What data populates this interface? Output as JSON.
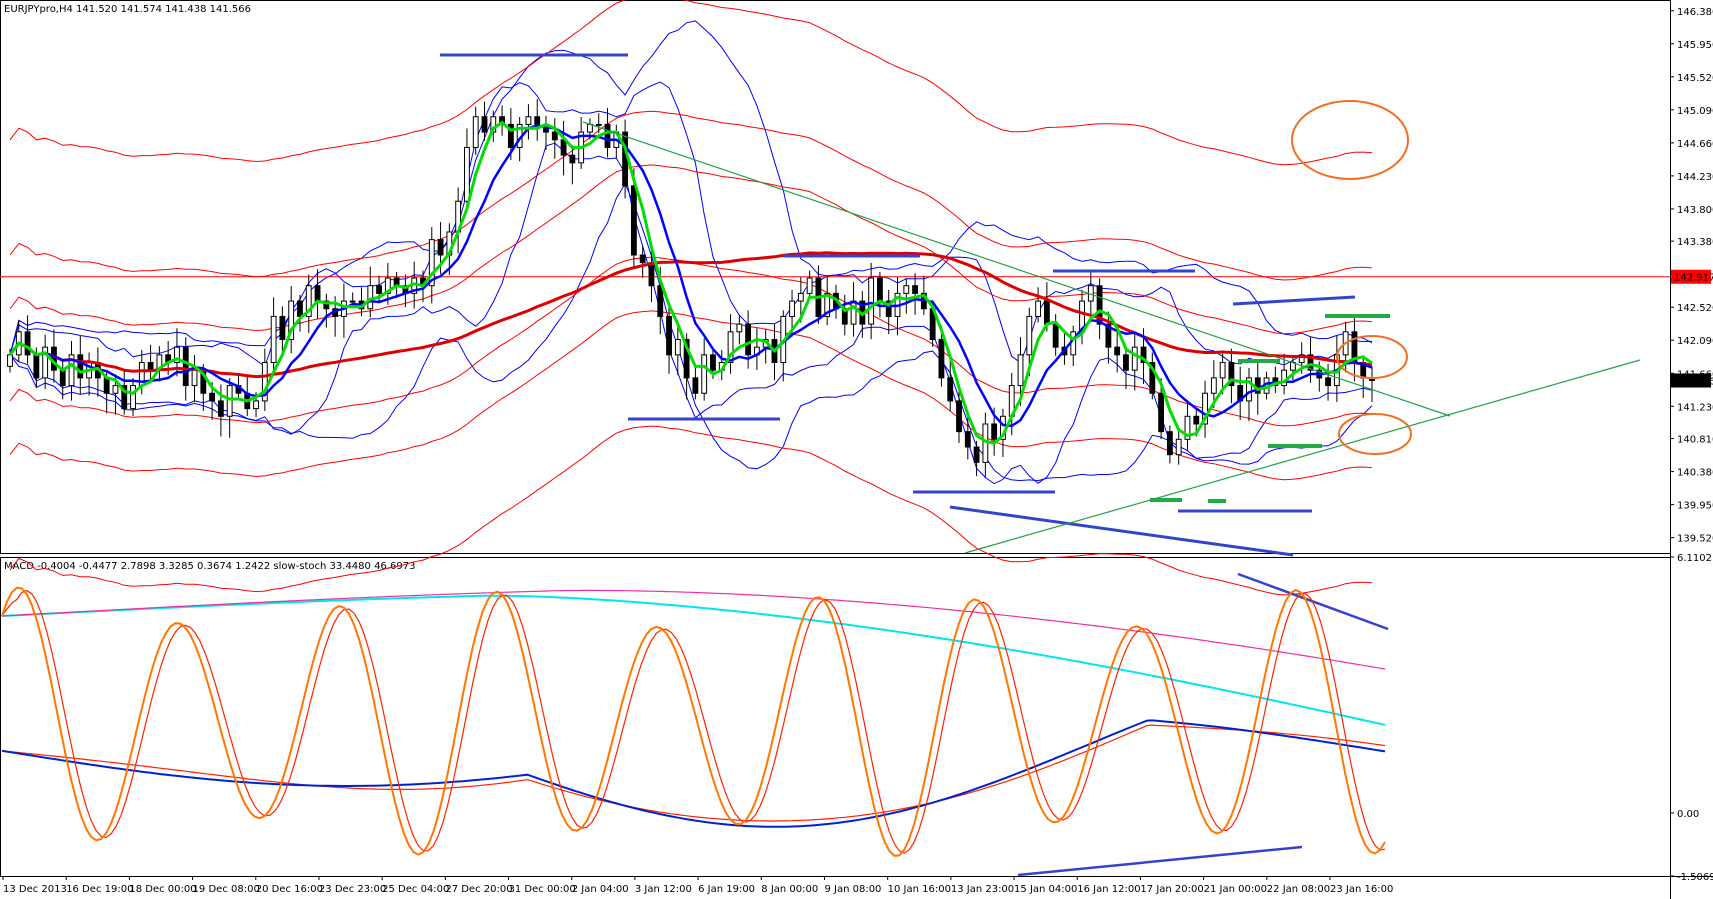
{
  "header": {
    "symbol_line": "EURJPYpro,H4  141.520 141.574 141.438 141.566",
    "indicator_line": "MACD -0.4004 -0.4477 2.7898 3.3285 0.3674 1.2422  slow-stoch 33.4480 46.6973"
  },
  "colors": {
    "bg": "#ffffff",
    "grid": "#000000",
    "up": "#ffffff",
    "down": "#000000",
    "candle_line": "#000000",
    "bollinger": "#0000ff",
    "envelope": "#ff0000",
    "ma_green": "#00dd00",
    "ma_blue": "#0000ff",
    "ma_red_thick": "#dd0000",
    "trend_green": "#22a044",
    "annot_blue": "#3344cc",
    "annot_green": "#22aa44",
    "annot_orange": "#f07020",
    "stoch_main": "#ff7700",
    "stoch_signal": "#ff2200",
    "macd_cyan": "#00e5ee",
    "macd_magenta": "#ee2fa0",
    "macd_blue": "#0022cc",
    "macd_red": "#ff2200",
    "price_label_bg": "#ff0000"
  },
  "chart_data": [
    {
      "type": "candlestick",
      "title": "EURJPYpro,H4",
      "ohlc_header": [
        141.52,
        141.574,
        141.438,
        141.566
      ],
      "ylim": [
        139.32,
        146.52
      ],
      "y_ticks": [
        {
          "value": 146.38,
          "label": "146.380"
        },
        {
          "value": 145.95,
          "label": "145.950"
        },
        {
          "value": 145.52,
          "label": "145.520"
        },
        {
          "value": 145.09,
          "label": "145.090"
        },
        {
          "value": 144.66,
          "label": "144.660"
        },
        {
          "value": 144.23,
          "label": "144.230"
        },
        {
          "value": 143.8,
          "label": "143.800"
        },
        {
          "value": 143.38,
          "label": "143.380"
        },
        {
          "value": 142.52,
          "label": "142.520"
        },
        {
          "value": 142.09,
          "label": "142.090"
        },
        {
          "value": 141.66,
          "label": "141.660"
        },
        {
          "value": 141.23,
          "label": "141.230"
        },
        {
          "value": 140.81,
          "label": "140.810"
        },
        {
          "value": 140.38,
          "label": "140.380"
        },
        {
          "value": 139.95,
          "label": "139.950"
        },
        {
          "value": 139.52,
          "label": "139.520"
        }
      ],
      "horizontal_line": {
        "value": 142.917,
        "label": "142.917"
      },
      "current_price": {
        "value": 141.566,
        "label": "141.566"
      },
      "x_labels": [
        "13 Dec 2013",
        "16 Dec 19:00",
        "18 Dec 00:00",
        "19 Dec 08:00",
        "20 Dec 16:00",
        "23 Dec 23:00",
        "25 Dec 04:00",
        "27 Dec 20:00",
        "31 Dec 00:00",
        "2 Jan 04:00",
        "3 Jan 12:00",
        "6 Jan 19:00",
        "8 Jan 00:00",
        "9 Jan 08:00",
        "10 Jan 16:00",
        "13 Jan 23:00",
        "15 Jan 04:00",
        "16 Jan 12:00",
        "17 Jan 20:00",
        "21 Jan 00:00",
        "22 Jan 08:00",
        "23 Jan 16:00"
      ],
      "closes": [
        141.9,
        142.2,
        141.9,
        141.6,
        142.0,
        141.7,
        141.5,
        141.9,
        141.6,
        141.8,
        141.6,
        141.4,
        141.5,
        141.2,
        141.5,
        141.8,
        141.7,
        141.9,
        141.8,
        142.0,
        141.5,
        141.7,
        141.4,
        141.3,
        141.1,
        141.5,
        141.4,
        141.2,
        141.3,
        141.8,
        142.4,
        142.1,
        142.6,
        142.4,
        142.8,
        142.6,
        142.5,
        142.4,
        142.6,
        142.6,
        142.5,
        142.8,
        142.7,
        142.9,
        142.8,
        142.7,
        142.9,
        142.8,
        143.4,
        143.2,
        143.5,
        143.9,
        144.6,
        145.0,
        144.8,
        145.0,
        144.9,
        144.6,
        144.9,
        145.0,
        144.9,
        144.8,
        144.7,
        144.5,
        144.4,
        144.8,
        144.9,
        144.9,
        144.6,
        144.8,
        144.1,
        143.2,
        143.1,
        142.8,
        142.4,
        141.9,
        142.1,
        141.6,
        141.4,
        141.9,
        141.7,
        141.8,
        142.2,
        142.3,
        141.9,
        142.0,
        142.1,
        141.8,
        142.4,
        142.6,
        142.7,
        142.9,
        142.4,
        142.7,
        142.5,
        142.3,
        142.6,
        142.3,
        142.9,
        142.6,
        142.4,
        142.7,
        142.8,
        142.7,
        142.5,
        142.1,
        141.6,
        141.3,
        140.9,
        140.7,
        140.5,
        141.0,
        140.8,
        141.1,
        141.5,
        141.9,
        142.4,
        142.6,
        142.3,
        142.0,
        141.9,
        142.2,
        142.6,
        142.8,
        142.3,
        142.0,
        141.9,
        141.7,
        142.0,
        141.8,
        141.4,
        140.9,
        140.6,
        140.8,
        141.1,
        141.0,
        141.4,
        141.6,
        141.8,
        141.5,
        141.3,
        141.6,
        141.4,
        141.6,
        141.5,
        141.7,
        141.8,
        141.9,
        141.7,
        141.6,
        141.5,
        141.9,
        142.2,
        141.8,
        141.6,
        141.566
      ]
    },
    {
      "type": "line",
      "title": "MACD / slow-stoch",
      "macd_values": [
        -0.4004,
        -0.4477,
        2.7898,
        3.3285,
        0.3674,
        1.2422
      ],
      "stoch_values": [
        33.448,
        46.6973
      ],
      "ylim": [
        -1.5069,
        6.1102
      ],
      "y_ticks": [
        {
          "value": 6.1102,
          "label": "6.1102"
        },
        {
          "value": 0.0,
          "label": "0.00"
        },
        {
          "value": -1.5069,
          "label": "-1.5069"
        }
      ]
    }
  ]
}
